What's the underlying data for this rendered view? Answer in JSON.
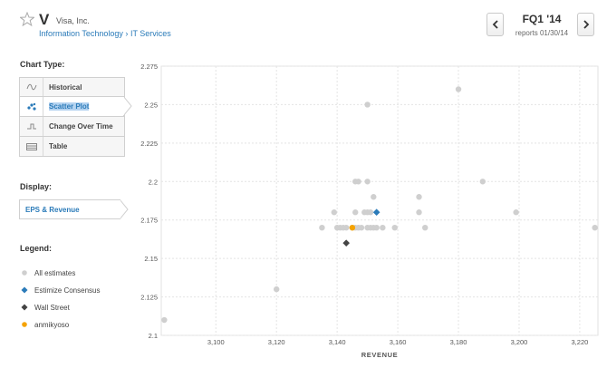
{
  "header": {
    "ticker": "V",
    "company": "Visa, Inc.",
    "sector": "Information Technology",
    "separator": "›",
    "industry": "IT Services",
    "quarter": "FQ1 '14",
    "reports": "reports 01/30/14"
  },
  "sidebar": {
    "chart_type_label": "Chart Type:",
    "chart_types": [
      {
        "label": "Historical",
        "icon": "wave-icon"
      },
      {
        "label": "Scatter Plot",
        "icon": "scatter-icon"
      },
      {
        "label": "Change Over Time",
        "icon": "step-icon"
      },
      {
        "label": "Table",
        "icon": "table-icon"
      }
    ],
    "active_chart_type": "Scatter Plot",
    "display_label": "Display:",
    "display_value": "EPS & Revenue",
    "legend_label": "Legend:",
    "legend": [
      {
        "label": "All estimates",
        "color": "#cfcfcf",
        "shape": "circle"
      },
      {
        "label": "Estimize Consensus",
        "color": "#2b7bb9",
        "shape": "diamond"
      },
      {
        "label": "Wall Street",
        "color": "#444444",
        "shape": "diamond"
      },
      {
        "label": "anmikyoso",
        "color": "#f5a300",
        "shape": "circle"
      }
    ]
  },
  "colors": {
    "estimate": "#cfcfcf",
    "consensus": "#2b7bb9",
    "wall_street": "#444444",
    "user": "#f5a300",
    "link": "#2b7bb9"
  },
  "chart_data": {
    "type": "scatter",
    "xlabel": "REVENUE",
    "ylabel": "",
    "xlim": [
      3082,
      3226
    ],
    "ylim": [
      2.1,
      2.275
    ],
    "x_ticks": [
      "3,100",
      "3,120",
      "3,140",
      "3,160",
      "3,180",
      "3,200",
      "3,220"
    ],
    "x_tick_values": [
      3100,
      3120,
      3140,
      3160,
      3180,
      3200,
      3220
    ],
    "y_ticks": [
      "2.1",
      "2.125",
      "2.15",
      "2.175",
      "2.2",
      "2.225",
      "2.25",
      "2.275"
    ],
    "y_tick_values": [
      2.1,
      2.125,
      2.15,
      2.175,
      2.2,
      2.225,
      2.25,
      2.275
    ],
    "grid": true,
    "series": [
      {
        "name": "All estimates",
        "points": [
          [
            3083,
            2.11
          ],
          [
            3120,
            2.13
          ],
          [
            3135,
            2.17
          ],
          [
            3139,
            2.18
          ],
          [
            3140,
            2.17
          ],
          [
            3141,
            2.17
          ],
          [
            3142,
            2.17
          ],
          [
            3143,
            2.17
          ],
          [
            3145,
            2.17
          ],
          [
            3146,
            2.17
          ],
          [
            3147,
            2.17
          ],
          [
            3148,
            2.17
          ],
          [
            3150,
            2.17
          ],
          [
            3151,
            2.17
          ],
          [
            3152,
            2.17
          ],
          [
            3153,
            2.17
          ],
          [
            3155,
            2.17
          ],
          [
            3159,
            2.17
          ],
          [
            3169,
            2.17
          ],
          [
            3146,
            2.2
          ],
          [
            3147,
            2.2
          ],
          [
            3150,
            2.2
          ],
          [
            3152,
            2.19
          ],
          [
            3146,
            2.18
          ],
          [
            3149,
            2.18
          ],
          [
            3150,
            2.18
          ],
          [
            3151,
            2.18
          ],
          [
            3167,
            2.19
          ],
          [
            3167,
            2.18
          ],
          [
            3188,
            2.2
          ],
          [
            3199,
            2.18
          ],
          [
            3180,
            2.26
          ],
          [
            3150,
            2.25
          ],
          [
            3225,
            2.17
          ]
        ]
      },
      {
        "name": "Estimize Consensus",
        "points": [
          [
            3153,
            2.18
          ]
        ]
      },
      {
        "name": "Wall Street",
        "points": [
          [
            3143,
            2.16
          ]
        ]
      },
      {
        "name": "anmikyoso",
        "points": [
          [
            3145,
            2.17
          ]
        ]
      }
    ]
  }
}
